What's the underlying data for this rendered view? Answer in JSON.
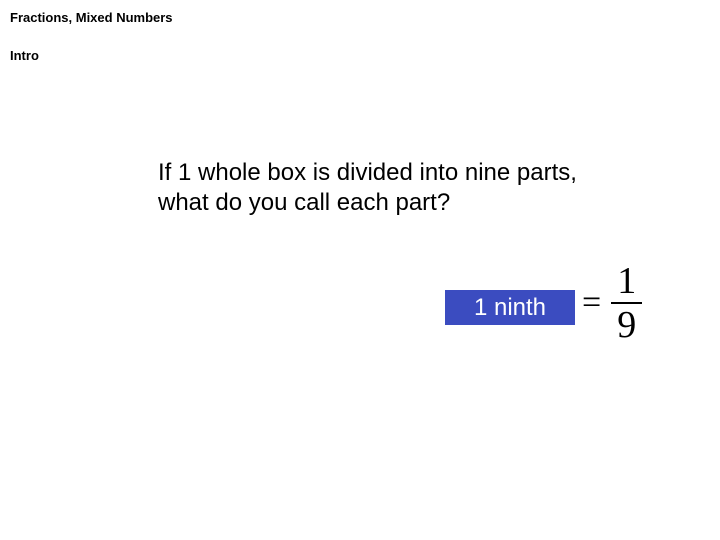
{
  "header": {
    "title": "Fractions, Mixed Numbers",
    "subtitle": "Intro"
  },
  "content": {
    "question": "If 1 whole box is divided into nine parts, what do you call each part?",
    "answer_label": "1 ninth",
    "equals": "=",
    "fraction": {
      "numerator": "1",
      "denominator": "9"
    }
  },
  "styles": {
    "background": "#ffffff",
    "text_color": "#000000",
    "header_fontsize": 13,
    "question_fontsize": 24,
    "answer_box_bg": "#3b4cc0",
    "answer_box_fg": "#ffffff",
    "fraction_fontsize": 38,
    "equals_fontsize": 34,
    "header_fontweight": "bold"
  }
}
